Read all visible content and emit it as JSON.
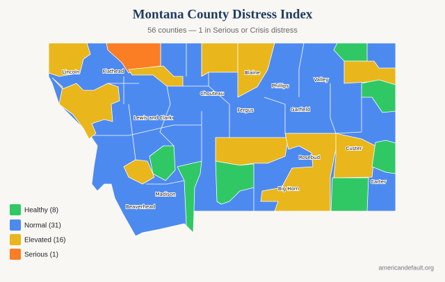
{
  "title": "Montana County Distress Index",
  "subtitle": "56 counties — 1 in Serious or Crisis distress",
  "counties": [
    "Lincoln",
    "Flathead",
    "Blaine",
    "Phillips",
    "Valley",
    "Chouteau",
    "Fergus",
    "Garfield",
    "Lewis and Clark",
    "Rosebud",
    "Custer",
    "Carter",
    "Big Horn",
    "Madison",
    "Beaverhead"
  ],
  "legend": [
    "Healthy (8)",
    "Normal (31)",
    "Elevated (16)",
    "Serious (1)"
  ],
  "source": "americandefault.org"
}
